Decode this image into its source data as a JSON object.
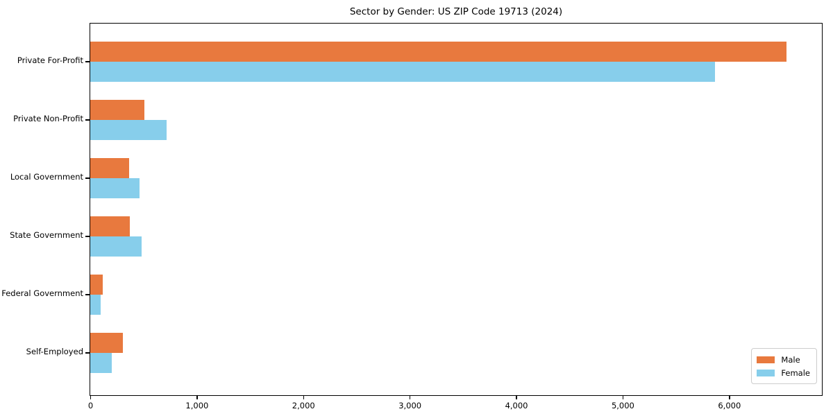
{
  "chart_data": {
    "type": "bar",
    "orientation": "horizontal",
    "title": "Sector by Gender: US ZIP Code 19713 (2024)",
    "xlabel": "",
    "ylabel": "",
    "categories": [
      "Private For-Profit",
      "Private Non-Profit",
      "Local Government",
      "State Government",
      "Federal Government",
      "Self-Employed"
    ],
    "series": [
      {
        "name": "Male",
        "color": "#e8793e",
        "values": [
          6540,
          510,
          365,
          370,
          115,
          305
        ]
      },
      {
        "name": "Female",
        "color": "#87ceeb",
        "values": [
          5870,
          720,
          465,
          480,
          100,
          200
        ]
      }
    ],
    "xlim": [
      0,
      6865
    ],
    "x_ticks": [
      0,
      1000,
      2000,
      3000,
      4000,
      5000,
      6000
    ],
    "x_tick_labels": [
      "0",
      "1,000",
      "2,000",
      "3,000",
      "4,000",
      "5,000",
      "6,000"
    ],
    "grid": false,
    "legend_position": "lower right",
    "plot_background": "#ffffff",
    "spine_color": "#000000"
  },
  "legend": {
    "items": [
      {
        "label": "Male",
        "color": "#e8793e"
      },
      {
        "label": "Female",
        "color": "#87ceeb"
      }
    ]
  }
}
